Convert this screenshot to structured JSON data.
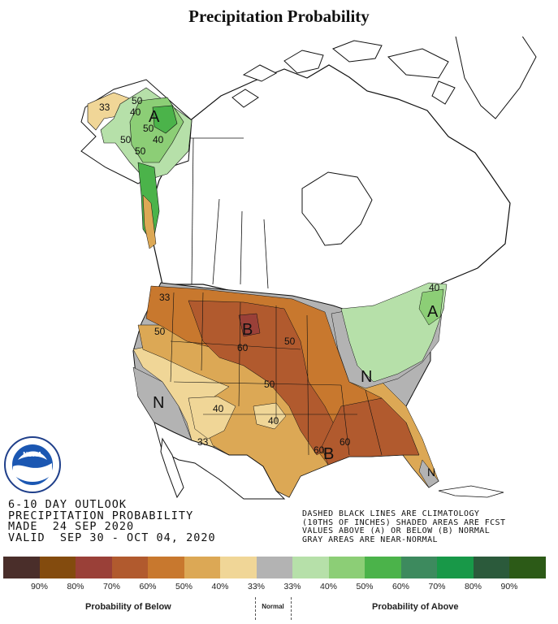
{
  "title": "Precipitation Probability",
  "outlook": {
    "line1": "6-10 DAY OUTLOOK",
    "line2": "PRECIPITATION PROBABILITY",
    "line3": "MADE  24 SEP 2020",
    "line4": "VALID  SEP 30 - OCT 04, 2020"
  },
  "note": {
    "line1": "DASHED BLACK LINES ARE CLIMATOLOGY",
    "line2": "(10THS OF INCHES) SHADED AREAS ARE FCST",
    "line3": "VALUES ABOVE (A) OR BELOW (B) NORMAL",
    "line4": "GRAY AREAS ARE NEAR-NORMAL"
  },
  "map_labels": {
    "alaska_a": "A",
    "alaska_40": "40",
    "alaska_50a": "50",
    "alaska_50b": "50",
    "alaska_50c": "50",
    "alaska_40b": "40",
    "alaska_33": "33",
    "alaska_50d": "50",
    "west_33": "33",
    "west_50": "50",
    "plains_b": "B",
    "plains_60": "60",
    "plains_50": "50",
    "central_50": "50",
    "west_n": "N",
    "sw_40a": "40",
    "sw_40b": "40",
    "sw_33": "33",
    "se_b": "B",
    "se_60a": "60",
    "se_60b": "60",
    "ne_a": "A",
    "ne_40": "40",
    "gl_n": "N",
    "fl_n": "N"
  },
  "legend": {
    "colors": [
      "#4a2e2a",
      "#834b0e",
      "#9a4038",
      "#b15a2e",
      "#c8782e",
      "#dca855",
      "#f0d697",
      "#b3b3b3",
      "#b6e0a9",
      "#8cce76",
      "#4bb34a",
      "#3d8a5e",
      "#189848",
      "#2b5a3b",
      "#2c5a17"
    ],
    "ticks": [
      "90%",
      "80%",
      "70%",
      "60%",
      "50%",
      "40%",
      "33%",
      "33%",
      "40%",
      "50%",
      "60%",
      "70%",
      "80%",
      "90%"
    ],
    "below_label": "Probability of Below",
    "normal_label": "Normal",
    "above_label": "Probability of Above"
  }
}
